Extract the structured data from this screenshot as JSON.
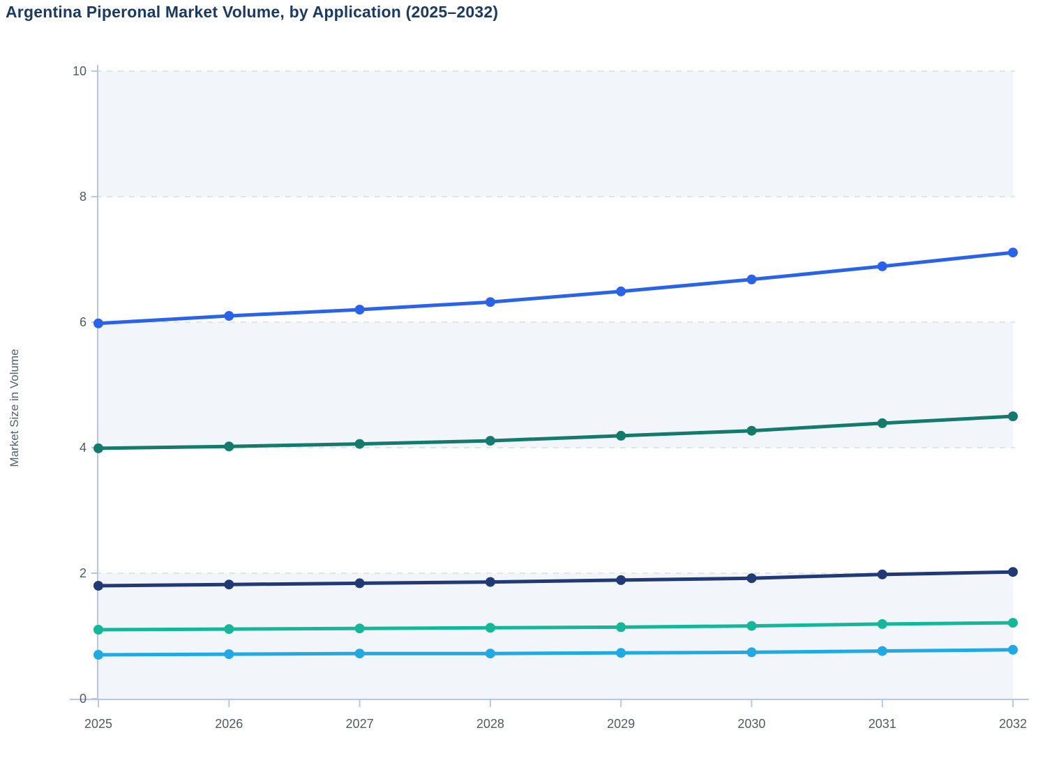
{
  "header": {
    "title": "Argentina Piperonal Market Volume, by Application (2025–2032)"
  },
  "chart_data": {
    "type": "line",
    "title": "Argentina Piperonal Market Volume, by Application (2025–2032)",
    "xlabel": "",
    "ylabel": "Market Size in Volume",
    "categories": [
      "2025",
      "2026",
      "2027",
      "2028",
      "2029",
      "2030",
      "2031",
      "2032"
    ],
    "y_ticks": [
      0,
      2,
      4,
      6,
      8,
      10
    ],
    "ylim": [
      0,
      10
    ],
    "grid": "horizontal-dashed",
    "legend_position": "none",
    "background_bands": [
      [
        10,
        8
      ],
      [
        6,
        4
      ],
      [
        2,
        0
      ]
    ],
    "series": [
      {
        "name": "series-1-blue",
        "color": "#2b63e8",
        "values": [
          5.98,
          6.1,
          6.2,
          6.32,
          6.49,
          6.68,
          6.89,
          7.11
        ]
      },
      {
        "name": "series-2-dark-teal",
        "color": "#147a6c",
        "values": [
          3.99,
          4.02,
          4.06,
          4.11,
          4.19,
          4.27,
          4.39,
          4.5
        ]
      },
      {
        "name": "series-3-navy",
        "color": "#213a75",
        "values": [
          1.8,
          1.82,
          1.84,
          1.86,
          1.89,
          1.92,
          1.98,
          2.02
        ]
      },
      {
        "name": "series-4-mint",
        "color": "#15b79b",
        "values": [
          1.1,
          1.11,
          1.12,
          1.13,
          1.14,
          1.16,
          1.19,
          1.21
        ]
      },
      {
        "name": "series-5-cyan",
        "color": "#20a9e2",
        "values": [
          0.7,
          0.71,
          0.72,
          0.72,
          0.73,
          0.74,
          0.76,
          0.78
        ]
      }
    ]
  },
  "style": {
    "title_color": "#1b3a61",
    "ylabel_color": "#4d6377",
    "tick_label_color": "#515a64",
    "axis_color": "#b7c6e8",
    "grid_color": "#e1e5e9",
    "band_color": "#f2f5f9",
    "background_color": "#ffffff"
  }
}
